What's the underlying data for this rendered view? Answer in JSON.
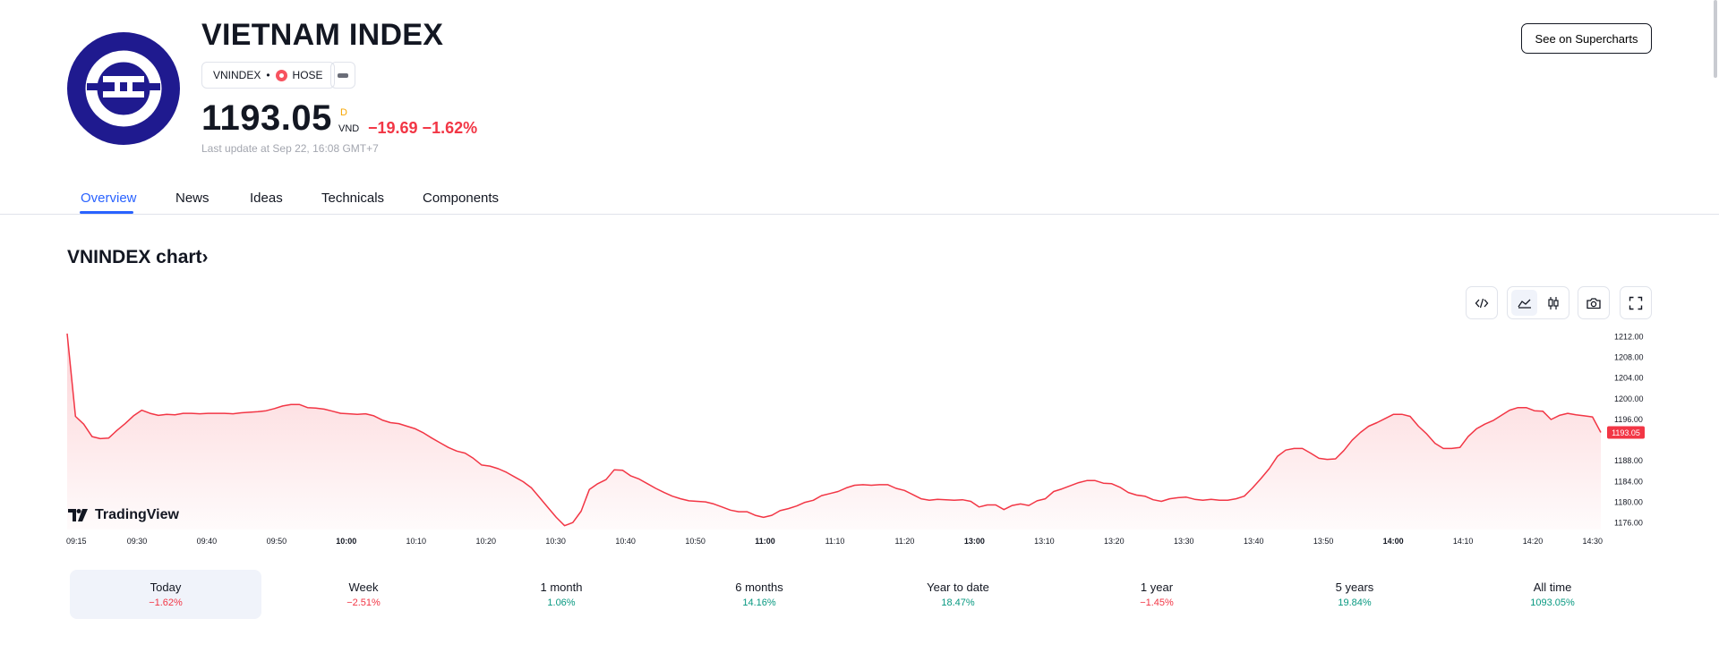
{
  "header": {
    "title": "VIETNAM INDEX",
    "ticker": "VNINDEX",
    "separator": "•",
    "exchange": "HOSE",
    "price": "1193.05",
    "price_sup": "D",
    "currency": "VND",
    "change": "−19.69 −1.62%",
    "last_update": "Last update at Sep 22, 16:08 GMT+7",
    "supercharts_button": "See on Supercharts"
  },
  "tabs": [
    "Overview",
    "News",
    "Ideas",
    "Technicals",
    "Components"
  ],
  "chart_section": {
    "title": "VNINDEX chart›",
    "brand": "TradingView",
    "current_price_label": "1193.05"
  },
  "periods": [
    {
      "label": "Today",
      "value": "−1.62%",
      "trend": "neg"
    },
    {
      "label": "Week",
      "value": "−2.51%",
      "trend": "neg"
    },
    {
      "label": "1 month",
      "value": "1.06%",
      "trend": "pos"
    },
    {
      "label": "6 months",
      "value": "14.16%",
      "trend": "pos"
    },
    {
      "label": "Year to date",
      "value": "18.47%",
      "trend": "pos"
    },
    {
      "label": "1 year",
      "value": "−1.45%",
      "trend": "neg"
    },
    {
      "label": "5 years",
      "value": "19.84%",
      "trend": "pos"
    },
    {
      "label": "All time",
      "value": "1093.05%",
      "trend": "pos"
    }
  ],
  "colors": {
    "accent": "#2962ff",
    "negative": "#f23645",
    "positive": "#089981",
    "logo_bg": "#1f1a8f"
  },
  "chart_data": {
    "type": "area",
    "x_ticks": [
      "09:15",
      "09:30",
      "09:40",
      "09:50",
      "10:00",
      "10:10",
      "10:20",
      "10:30",
      "10:40",
      "10:50",
      "11:00",
      "11:10",
      "11:20",
      "13:00",
      "13:10",
      "13:20",
      "13:30",
      "13:40",
      "13:50",
      "14:00",
      "14:10",
      "14:20",
      "14:30"
    ],
    "bold_ticks": [
      "10:00",
      "11:00",
      "13:00",
      "14:00"
    ],
    "y_ticks": [
      "1212.00",
      "1208.00",
      "1204.00",
      "1200.00",
      "1196.00",
      "1188.00",
      "1184.00",
      "1180.00",
      "1176.00"
    ],
    "ylim": [
      1175,
      1213
    ],
    "series": [
      {
        "values": [
          1212.5,
          1196.5,
          1195,
          1192.6,
          1192.2,
          1192.3,
          1193.8,
          1195.1,
          1196.6,
          1197.7,
          1197.1,
          1196.7,
          1196.9,
          1196.8,
          1197.1,
          1197.1,
          1197,
          1197.1,
          1197.1,
          1197.1,
          1197,
          1197.2,
          1197.3,
          1197.4,
          1197.6,
          1198,
          1198.5,
          1198.8,
          1198.8,
          1198.2,
          1198.1,
          1197.9,
          1197.5,
          1197.1,
          1197,
          1196.9,
          1197,
          1196.6,
          1195.8,
          1195.3,
          1195.1,
          1194.6,
          1194.1,
          1193.3,
          1192.3,
          1191.4,
          1190.5,
          1189.8,
          1189.4,
          1188.4,
          1187.1,
          1186.9,
          1186.4,
          1185.7,
          1184.8,
          1183.9,
          1182.7,
          1180.8,
          1178.9,
          1177,
          1175.4,
          1176,
          1178.2,
          1182.4,
          1183.5,
          1184.3,
          1186.2,
          1186.1,
          1185,
          1184.4,
          1183.5,
          1182.6,
          1181.8,
          1181.1,
          1180.6,
          1180.2,
          1180.1,
          1180,
          1179.6,
          1179,
          1178.4,
          1178.1,
          1178.1,
          1177.4,
          1177,
          1177.4,
          1178.3,
          1178.7,
          1179.2,
          1179.9,
          1180.3,
          1181.2,
          1181.6,
          1182,
          1182.7,
          1183.2,
          1183.3,
          1183.2,
          1183.3,
          1183.3,
          1182.6,
          1182.2,
          1181.4,
          1180.6,
          1180.3,
          1180.5,
          1180.4,
          1180.3,
          1180.4,
          1180.1,
          1179,
          1179.4,
          1179.4,
          1178.5,
          1179.3,
          1179.6,
          1179.3,
          1180.2,
          1180.6,
          1182,
          1182.5,
          1183.1,
          1183.7,
          1184.1,
          1184.1,
          1183.6,
          1183.5,
          1182.8,
          1181.8,
          1181.3,
          1181.1,
          1180.4,
          1180.1,
          1180.6,
          1180.8,
          1180.9,
          1180.5,
          1180.3,
          1180.5,
          1180.3,
          1180.3,
          1180.6,
          1181.1,
          1182.7,
          1184.5,
          1186.4,
          1188.8,
          1190,
          1190.3,
          1190.3,
          1189.4,
          1188.4,
          1188.2,
          1188.3,
          1189.9,
          1191.9,
          1193.4,
          1194.6,
          1195.3,
          1196.1,
          1196.9,
          1196.9,
          1196.5,
          1194.6,
          1193.1,
          1191.3,
          1190.3,
          1190.3,
          1190.5,
          1192.6,
          1194.1,
          1195,
          1195.7,
          1196.7,
          1197.7,
          1198.2,
          1198.2,
          1197.6,
          1197.5,
          1195.9,
          1196.7,
          1197.1,
          1196.8,
          1196.6,
          1196.4,
          1193.4
        ]
      }
    ]
  }
}
